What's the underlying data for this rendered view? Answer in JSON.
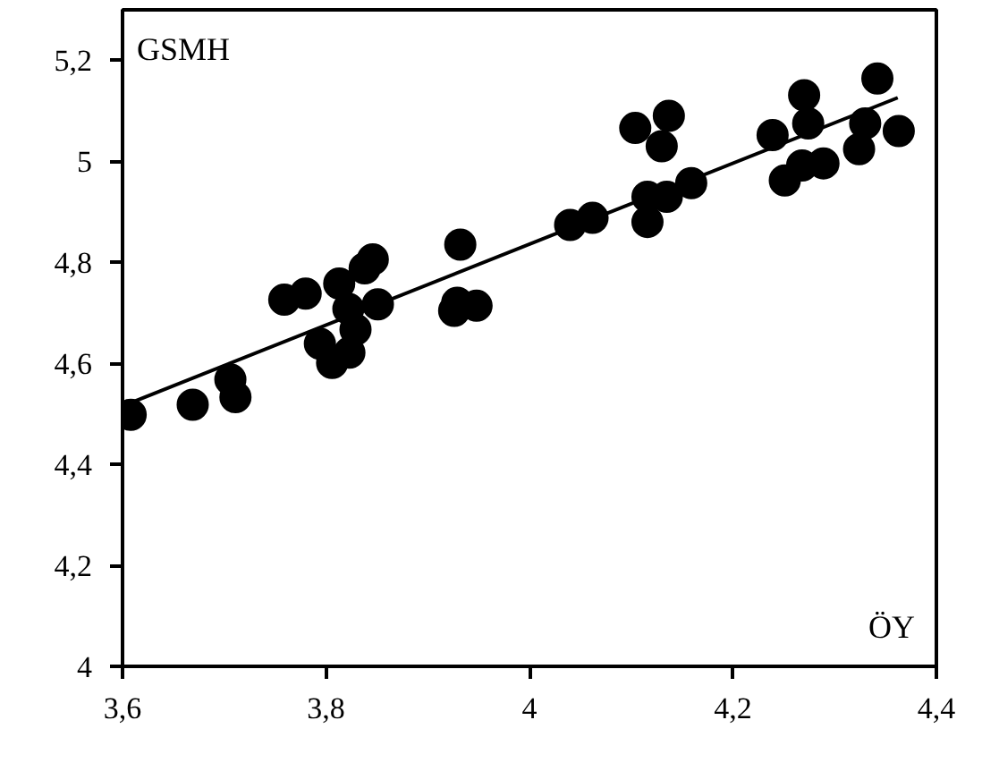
{
  "chart_data": {
    "type": "scatter",
    "xlabel": "ÖY",
    "ylabel": "GSMH",
    "grid": false,
    "xlim": [
      3.6,
      4.4
    ],
    "ylim": [
      4,
      5.3
    ],
    "xticks": [
      {
        "value": 3.6,
        "label": "3,6"
      },
      {
        "value": 3.8,
        "label": "3,8"
      },
      {
        "value": 4,
        "label": "4"
      },
      {
        "value": 4.2,
        "label": "4,2"
      },
      {
        "value": 4.4,
        "label": "4,4"
      }
    ],
    "yticks": [
      {
        "value": 4,
        "label": "4"
      },
      {
        "value": 4.2,
        "label": "4,2"
      },
      {
        "value": 4.4,
        "label": "4,4"
      },
      {
        "value": 4.6,
        "label": "4,6"
      },
      {
        "value": 4.8,
        "label": "4,8"
      },
      {
        "value": 5,
        "label": "5"
      },
      {
        "value": 5.2,
        "label": "5,2"
      }
    ],
    "series": [
      {
        "marker": "circle",
        "color": "#000000",
        "x": [
          3.608,
          3.669,
          3.706,
          3.711,
          3.759,
          3.78,
          3.794,
          3.806,
          3.813,
          3.822,
          3.823,
          3.829,
          3.838,
          3.846,
          3.851,
          3.926,
          3.932,
          3.929,
          3.948,
          4.04,
          4.062,
          4.104,
          4.137,
          4.13,
          4.116,
          4.116,
          4.135,
          4.159,
          4.239,
          4.251,
          4.268,
          4.289,
          4.27,
          4.274,
          4.324,
          4.33,
          4.342,
          4.363
        ],
        "values": [
          4.498,
          4.518,
          4.568,
          4.533,
          4.726,
          4.738,
          4.639,
          4.601,
          4.758,
          4.708,
          4.621,
          4.667,
          4.788,
          4.806,
          4.717,
          4.704,
          4.835,
          4.72,
          4.714,
          4.874,
          4.888,
          5.066,
          5.09,
          5.03,
          4.93,
          4.88,
          4.93,
          4.957,
          5.052,
          4.962,
          4.992,
          4.996,
          5.131,
          5.075,
          5.024,
          5.075,
          5.164,
          5.06
        ]
      },
      {
        "type": "line",
        "color": "#000000",
        "x": [
          3.608,
          4.362
        ],
        "values": [
          4.522,
          5.126
        ]
      }
    ]
  }
}
